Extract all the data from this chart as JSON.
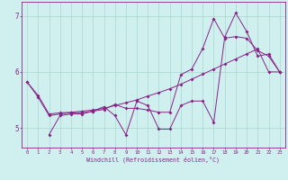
{
  "xlabel": "Windchill (Refroidissement éolien,°C)",
  "bg_color": "#cff0ee",
  "grid_color": "#a8d8cc",
  "line_color": "#882288",
  "xlim": [
    -0.5,
    23.5
  ],
  "ylim": [
    4.65,
    7.25
  ],
  "yticks": [
    5,
    6,
    7
  ],
  "xticks": [
    0,
    1,
    2,
    3,
    4,
    5,
    6,
    7,
    8,
    9,
    10,
    11,
    12,
    13,
    14,
    15,
    16,
    17,
    18,
    19,
    20,
    21,
    22,
    23
  ],
  "series1_x": [
    0,
    1,
    2,
    3,
    4,
    5,
    6,
    7,
    8,
    9,
    10,
    11,
    12,
    13,
    14,
    15,
    16,
    17,
    18,
    19,
    20,
    21,
    22,
    23
  ],
  "series1_y": [
    5.82,
    5.58,
    5.25,
    5.27,
    5.28,
    5.3,
    5.32,
    5.35,
    5.4,
    5.45,
    5.5,
    5.57,
    5.63,
    5.7,
    5.78,
    5.87,
    5.96,
    6.05,
    6.14,
    6.23,
    6.32,
    6.41,
    6.0,
    6.0
  ],
  "series2_x": [
    0,
    1,
    2,
    3,
    4,
    5,
    6,
    7,
    8,
    9,
    10,
    11,
    12,
    13,
    14,
    15,
    16,
    17,
    18,
    19,
    20,
    21,
    22,
    23
  ],
  "series2_y": [
    5.82,
    5.55,
    5.22,
    5.25,
    5.27,
    5.27,
    5.3,
    5.33,
    5.42,
    5.35,
    5.35,
    5.32,
    5.28,
    5.28,
    5.95,
    6.05,
    6.42,
    6.95,
    6.6,
    6.63,
    6.6,
    6.38,
    6.28,
    6.0
  ],
  "series3_x": [
    2,
    3,
    4,
    5,
    6,
    7,
    8,
    9,
    10,
    11,
    12,
    13,
    14,
    15,
    16,
    17,
    18,
    19,
    20,
    21,
    22,
    23
  ],
  "series3_y": [
    4.88,
    5.22,
    5.25,
    5.25,
    5.3,
    5.38,
    5.22,
    4.88,
    5.48,
    5.4,
    4.98,
    4.98,
    5.4,
    5.48,
    5.48,
    5.1,
    6.62,
    7.05,
    6.72,
    6.28,
    6.32,
    6.0
  ]
}
